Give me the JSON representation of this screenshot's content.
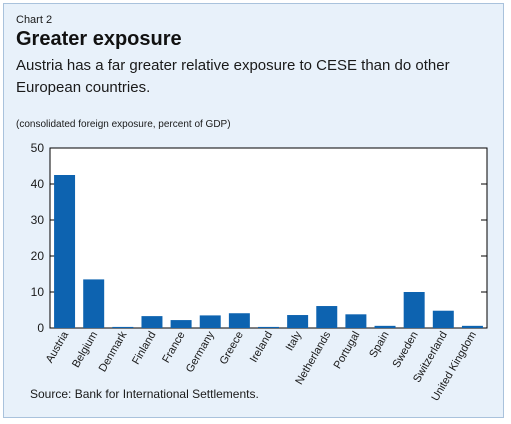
{
  "chart_label": "Chart 2",
  "title": "Greater exposure",
  "subtitle": "Austria has a far greater relative exposure to CESE than do other European countries.",
  "units_note": "(consolidated foreign exposure, percent of GDP)",
  "source": "Source: Bank for International Settlements.",
  "colors": {
    "bar": "#0d63b0",
    "background": "#e8f1fa",
    "plot": "#ffffff"
  },
  "chart_data": {
    "type": "bar",
    "categories": [
      "Austria",
      "Belgium",
      "Denmark",
      "Finland",
      "France",
      "Germany",
      "Greece",
      "Ireland",
      "Italy",
      "Netherlands",
      "Portugal",
      "Spain",
      "Sweden",
      "Switzerland",
      "United Kingdom"
    ],
    "values": [
      42.5,
      13.5,
      0.3,
      3.3,
      2.2,
      3.5,
      4.1,
      0.3,
      3.6,
      6.1,
      3.8,
      0.6,
      10.0,
      4.8,
      0.6
    ],
    "title": "Greater exposure",
    "ylim": [
      0,
      50
    ],
    "yticks": [
      0,
      10,
      20,
      30,
      40,
      50
    ],
    "grid": false,
    "legend": "none"
  }
}
